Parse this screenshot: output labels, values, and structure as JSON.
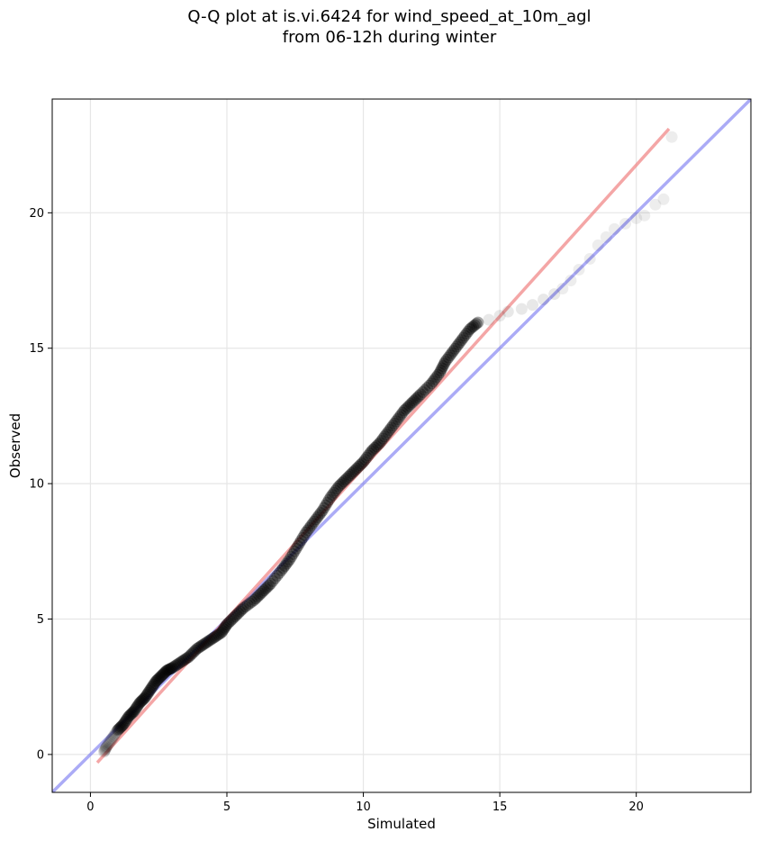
{
  "title_line1": "Q-Q plot at is.vi.6424 for wind_speed_at_10m_agl",
  "title_line2": "from 06-12h during winter",
  "chart_data": {
    "type": "scatter",
    "xlabel": "Simulated",
    "ylabel": "Observed",
    "xlim": [
      -1.4,
      24.2
    ],
    "ylim": [
      -1.4,
      24.2
    ],
    "xticks": [
      0,
      5,
      10,
      15,
      20
    ],
    "yticks": [
      0,
      5,
      10,
      15,
      20
    ],
    "grid": true,
    "colors": {
      "points": "#000000",
      "fit_line": "#f08080",
      "identity_line": "#6666ee"
    },
    "series": [
      {
        "kind": "points",
        "points": [
          [
            0.5,
            0.1
          ],
          [
            0.6,
            0.3
          ],
          [
            0.8,
            0.6
          ],
          [
            1.0,
            0.9
          ],
          [
            1.2,
            1.1
          ],
          [
            1.4,
            1.4
          ],
          [
            1.6,
            1.6
          ],
          [
            1.8,
            1.9
          ],
          [
            2.0,
            2.1
          ],
          [
            2.2,
            2.4
          ],
          [
            2.4,
            2.7
          ],
          [
            2.6,
            2.9
          ],
          [
            2.8,
            3.1
          ],
          [
            3.0,
            3.2
          ],
          [
            3.3,
            3.4
          ],
          [
            3.6,
            3.6
          ],
          [
            3.9,
            3.9
          ],
          [
            4.2,
            4.1
          ],
          [
            4.5,
            4.3
          ],
          [
            4.8,
            4.5
          ],
          [
            5.0,
            4.8
          ],
          [
            5.3,
            5.1
          ],
          [
            5.6,
            5.4
          ],
          [
            6.0,
            5.7
          ],
          [
            6.3,
            6.0
          ],
          [
            6.6,
            6.3
          ],
          [
            7.0,
            6.8
          ],
          [
            7.3,
            7.2
          ],
          [
            7.6,
            7.7
          ],
          [
            7.9,
            8.2
          ],
          [
            8.2,
            8.6
          ],
          [
            8.5,
            9.0
          ],
          [
            8.8,
            9.5
          ],
          [
            9.1,
            9.9
          ],
          [
            9.4,
            10.2
          ],
          [
            9.7,
            10.5
          ],
          [
            10.0,
            10.8
          ],
          [
            10.3,
            11.2
          ],
          [
            10.6,
            11.5
          ],
          [
            10.9,
            11.9
          ],
          [
            11.2,
            12.3
          ],
          [
            11.5,
            12.7
          ],
          [
            11.8,
            13.0
          ],
          [
            12.1,
            13.3
          ],
          [
            12.5,
            13.7
          ],
          [
            12.8,
            14.1
          ],
          [
            13.0,
            14.5
          ],
          [
            13.3,
            14.9
          ],
          [
            13.6,
            15.3
          ],
          [
            13.9,
            15.7
          ],
          [
            14.2,
            15.95
          ],
          [
            14.6,
            16.05
          ],
          [
            15.0,
            16.2
          ],
          [
            15.3,
            16.35
          ],
          [
            15.8,
            16.45
          ],
          [
            16.2,
            16.6
          ],
          [
            16.6,
            16.8
          ],
          [
            17.0,
            17.0
          ],
          [
            17.3,
            17.2
          ],
          [
            17.6,
            17.5
          ],
          [
            17.9,
            17.9
          ],
          [
            18.3,
            18.3
          ],
          [
            18.6,
            18.8
          ],
          [
            18.9,
            19.1
          ],
          [
            19.2,
            19.4
          ],
          [
            19.6,
            19.6
          ],
          [
            20.0,
            19.8
          ],
          [
            20.3,
            19.9
          ],
          [
            20.7,
            20.3
          ],
          [
            21.0,
            20.5
          ],
          [
            21.3,
            22.8
          ]
        ]
      },
      {
        "kind": "fit_line",
        "points": [
          [
            0.25,
            -0.3
          ],
          [
            21.2,
            23.1
          ]
        ]
      },
      {
        "kind": "identity_line",
        "points": [
          [
            -1.4,
            -1.4
          ],
          [
            24.2,
            24.2
          ]
        ]
      }
    ]
  }
}
